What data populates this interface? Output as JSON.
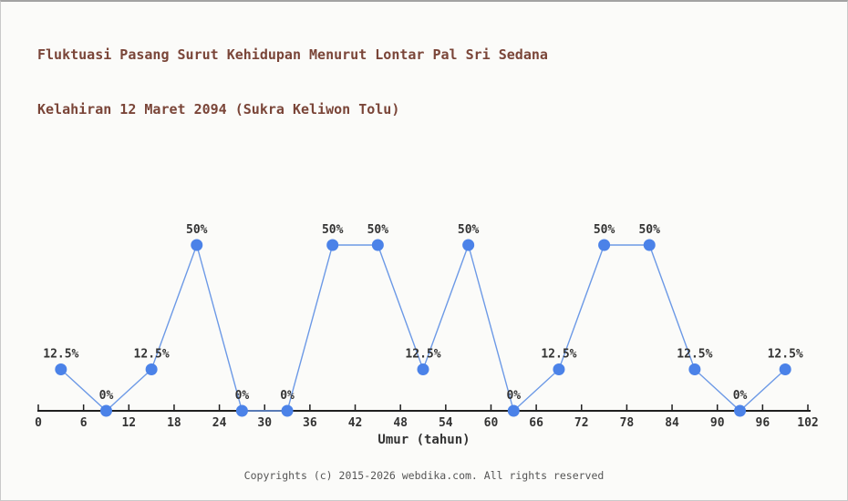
{
  "header": {
    "title_line1": "Fluktuasi Pasang Surut Kehidupan Menurut Lontar Pal Sri Sedana",
    "title_line2": "Kelahiran 12 Maret 2094 (Sukra Keliwon Tolu)"
  },
  "footer": {
    "copyright": "Copyrights (c) 2015-2026 webdika.com. All rights reserved"
  },
  "colors": {
    "background": "#fbfbf9",
    "title_text": "#7a4538",
    "axis": "#1f1f1f",
    "marker": "#4b82e8",
    "line": "#6c99e6",
    "label_text": "#333333",
    "footer_text": "#555555"
  },
  "chart_data": {
    "type": "line",
    "title": "Fluktuasi Pasang Surut Kehidupan Menurut Lontar Pal Sri Sedana Kelahiran 12 Maret 2094 (Sukra Keliwon Tolu)",
    "xlabel": "Umur (tahun)",
    "ylabel": "",
    "x": [
      3,
      9,
      15,
      21,
      27,
      33,
      39,
      45,
      51,
      57,
      63,
      69,
      75,
      81,
      87,
      93,
      99
    ],
    "values": [
      12.5,
      0,
      12.5,
      50,
      0,
      0,
      50,
      50,
      12.5,
      50,
      0,
      12.5,
      50,
      50,
      12.5,
      0,
      12.5
    ],
    "point_labels": [
      "12.5%",
      "0%",
      "12.5%",
      "50%",
      "0%",
      "0%",
      "50%",
      "50%",
      "12.5%",
      "50%",
      "0%",
      "12.5%",
      "50%",
      "50%",
      "12.5%",
      "0%",
      "12.5%"
    ],
    "xticks": [
      0,
      6,
      12,
      18,
      24,
      30,
      36,
      42,
      48,
      54,
      60,
      66,
      72,
      78,
      84,
      90,
      96,
      102
    ],
    "xlim": [
      0,
      102
    ],
    "ylim": [
      0,
      100
    ],
    "grid": false,
    "legend": null
  }
}
